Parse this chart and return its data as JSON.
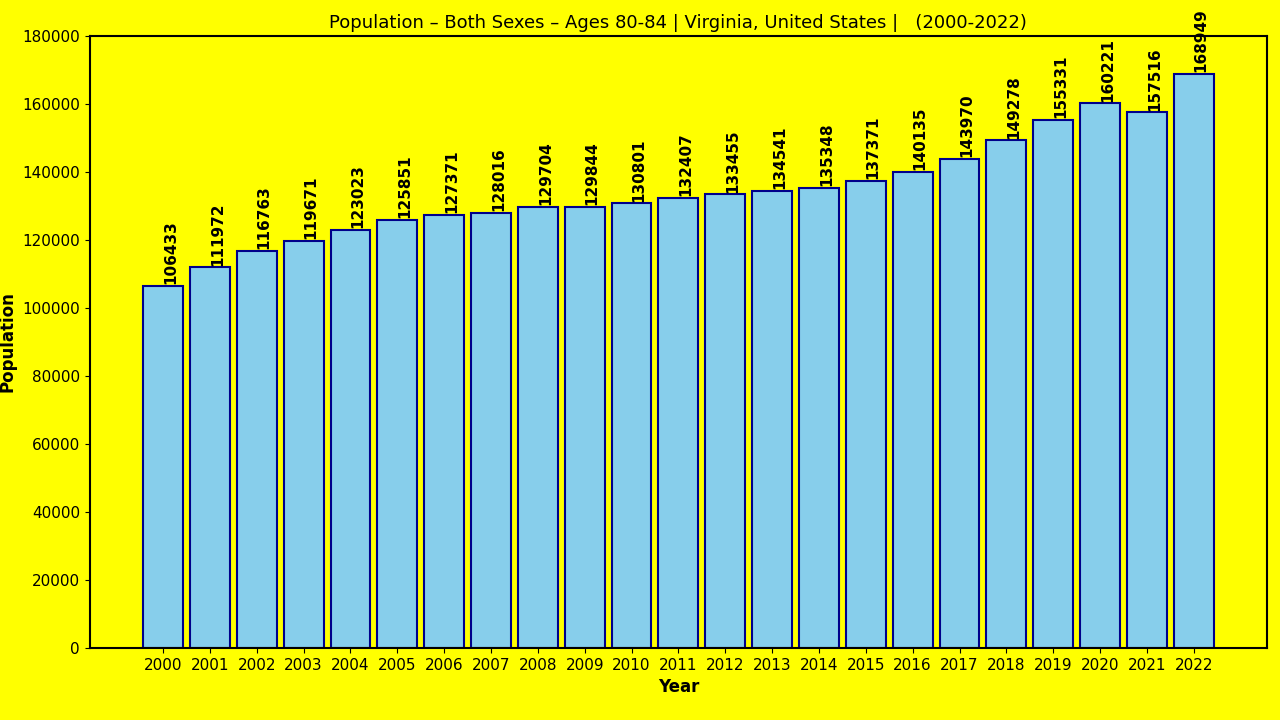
{
  "title": "Population – Both Sexes – Ages 80-84 | Virginia, United States |   (2000-2022)",
  "xlabel": "Year",
  "ylabel": "Population",
  "background_color": "#FFFF00",
  "bar_color": "#87CEEB",
  "bar_edge_color": "#00008B",
  "years": [
    2000,
    2001,
    2002,
    2003,
    2004,
    2005,
    2006,
    2007,
    2008,
    2009,
    2010,
    2011,
    2012,
    2013,
    2014,
    2015,
    2016,
    2017,
    2018,
    2019,
    2020,
    2021,
    2022
  ],
  "values": [
    106433,
    111972,
    116763,
    119671,
    123023,
    125851,
    127371,
    128016,
    129704,
    129844,
    130801,
    132407,
    133455,
    134541,
    135348,
    137371,
    140135,
    143970,
    149278,
    155331,
    160221,
    157516,
    168949
  ],
  "ylim": [
    0,
    180000
  ],
  "yticks": [
    0,
    20000,
    40000,
    60000,
    80000,
    100000,
    120000,
    140000,
    160000,
    180000
  ],
  "title_fontsize": 13,
  "axis_label_fontsize": 12,
  "tick_fontsize": 11,
  "value_fontsize": 11,
  "bar_width": 0.85
}
